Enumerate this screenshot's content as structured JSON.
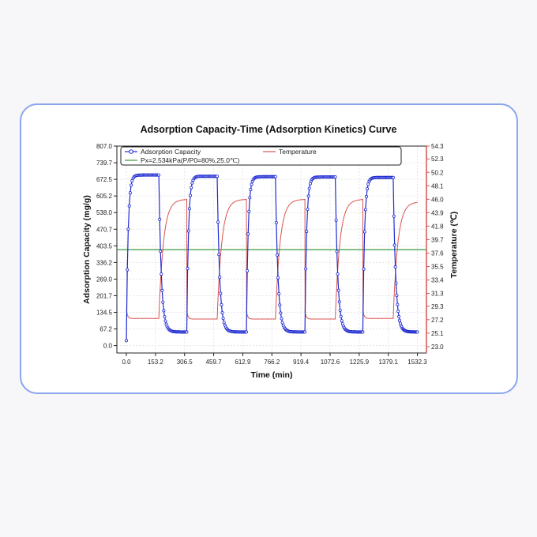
{
  "chart_data": {
    "type": "line",
    "title": "Adsorption Capacity-Time (Adsorption Kinetics) Curve",
    "xlabel": "Time (min)",
    "ylabel_left": "Adsorption Capacity (mg/g)",
    "ylabel_right": "Temperature (℃)",
    "xlim": [
      -50,
      1580
    ],
    "ylim_left": [
      -30,
      807
    ],
    "ylim_right": [
      22.0,
      54.3
    ],
    "x_ticks": [
      "0.0",
      "153.2",
      "306.5",
      "459.7",
      "612.9",
      "766.2",
      "919.4",
      "1072.6",
      "1225.9",
      "1379.1",
      "1532.3"
    ],
    "y_left_ticks": [
      "0.0",
      "67.2",
      "134.5",
      "201.7",
      "269.0",
      "336.2",
      "403.5",
      "470.7",
      "538.0",
      "605.2",
      "672.5",
      "739.7",
      "807.0"
    ],
    "y_right_ticks": [
      "23.0",
      "25.1",
      "27.2",
      "29.3",
      "31.3",
      "33.4",
      "35.5",
      "37.6",
      "39.7",
      "41.8",
      "43.9",
      "46.0",
      "48.1",
      "50.2",
      "52.3",
      "54.3"
    ],
    "grid": true,
    "legend_position": "top",
    "legend": {
      "adsorption": "Adsorption Capacity",
      "temperature": "Temperature",
      "reference": "Px=2.534kPa(P/P0=80%,25.0℃)"
    },
    "series": [
      {
        "name": "Adsorption Capacity",
        "axis": "left",
        "color": "#1e2bd0",
        "marker": "circle",
        "cycles": [
          {
            "start": 0,
            "end": 171,
            "high": 690,
            "low": 55
          },
          {
            "start": 318,
            "end": 478,
            "high": 685,
            "low": 55
          },
          {
            "start": 632,
            "end": 785,
            "high": 683,
            "low": 55
          },
          {
            "start": 940,
            "end": 1100,
            "high": 682,
            "low": 55
          },
          {
            "start": 1245,
            "end": 1405,
            "high": 680,
            "low": 55
          }
        ],
        "end_x": 1532.3,
        "initial_value": 20
      },
      {
        "name": "Temperature",
        "axis": "right",
        "color": "#d9534f",
        "cycles": [
          {
            "start": 0,
            "end": 171,
            "low": 27.4,
            "high": 46.0
          },
          {
            "start": 318,
            "end": 478,
            "low": 27.3,
            "high": 46.0
          },
          {
            "start": 632,
            "end": 785,
            "low": 27.3,
            "high": 46.0
          },
          {
            "start": 940,
            "end": 1100,
            "low": 27.3,
            "high": 46.0
          },
          {
            "start": 1245,
            "end": 1405,
            "low": 27.4,
            "high": 45.6
          }
        ],
        "end_x": 1532.3
      },
      {
        "name": "Px=2.534kPa(P/P0=80%,25.0℃)",
        "axis": "left",
        "color": "#3c9a3c",
        "constant": 388
      }
    ],
    "colors": {
      "left_axis": "#1e2bd0",
      "right_axis": "#d9534f",
      "card_border": "#8aa6ee"
    }
  }
}
